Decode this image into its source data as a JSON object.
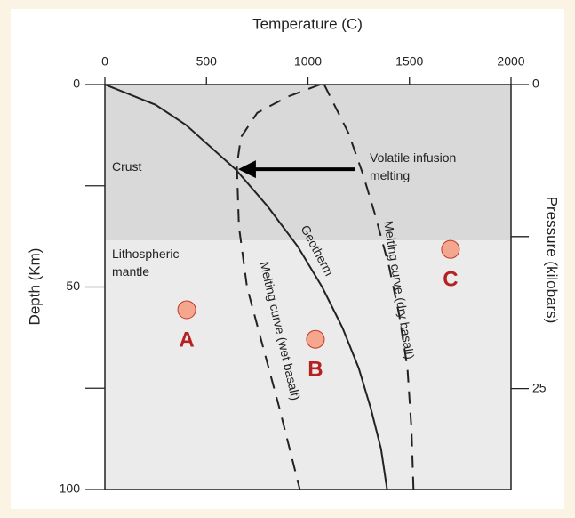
{
  "chart_data": {
    "type": "line",
    "xlabel": "Temperature (C)",
    "ylabel": "Depth (Km)",
    "y2label": "Pressure (kilobars)",
    "xlim": [
      0,
      2000
    ],
    "xticks": [
      0,
      500,
      1000,
      1500,
      2000
    ],
    "ylim": [
      0,
      100
    ],
    "yticks": [
      0,
      {
        "value": 25,
        "label": null
      },
      50,
      {
        "value": 75,
        "label": null
      },
      100
    ],
    "y2lim": [
      0,
      33.3
    ],
    "y2ticks": [
      0,
      {
        "value": 12.5,
        "label": null
      },
      25
    ],
    "regions": [
      {
        "label": "Crust",
        "from": 0,
        "to": 38.5,
        "color": "#d9d9d9"
      },
      {
        "label": "Lithospheric mantle",
        "from": 38.5,
        "to": 100,
        "color": "#ebebeb"
      }
    ],
    "series": [
      {
        "name": "Geotherm",
        "color": "#222222",
        "dashed": false,
        "x": [
          0,
          250,
          400,
          645,
          800,
          950,
          1070,
          1170,
          1250,
          1310,
          1360,
          1390
        ],
        "values": [
          0,
          5,
          10,
          21,
          30,
          40,
          50,
          60,
          70,
          80,
          90,
          100
        ]
      },
      {
        "name": "Melting curve (wet basalt)",
        "color": "#222222",
        "dashed": true,
        "x": [
          1060,
          900,
          750,
          670,
          650,
          660,
          700,
          780,
          860,
          960
        ],
        "values": [
          0,
          3,
          7,
          13,
          20,
          35,
          50,
          65,
          80,
          100
        ]
      },
      {
        "name": "Melting curve (dry basalt)",
        "color": "#222222",
        "dashed": true,
        "x": [
          1080,
          1130,
          1200,
          1270,
          1330,
          1400,
          1450,
          1490,
          1510,
          1520
        ],
        "values": [
          0,
          5,
          12,
          22,
          32,
          45,
          57,
          70,
          85,
          100
        ]
      }
    ],
    "points": [
      {
        "label": "A",
        "x": 403,
        "y": 55.6
      },
      {
        "label": "B",
        "x": 1037,
        "y": 62.9
      },
      {
        "label": "C",
        "x": 1702,
        "y": 40.7
      }
    ],
    "point_color": "#f4a78c",
    "point_label_color": "#b52020",
    "annotation": {
      "text": "Volatile infusion melting",
      "from": [
        1234,
        20.9
      ],
      "to": [
        656,
        20.9
      ]
    }
  }
}
